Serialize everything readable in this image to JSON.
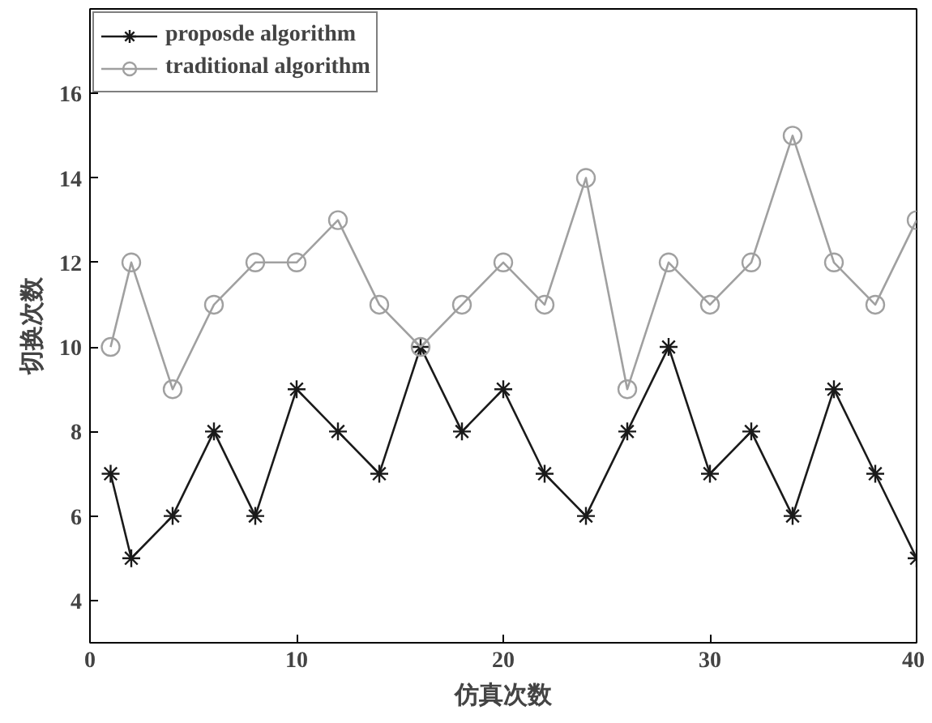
{
  "chart_data": {
    "type": "line",
    "xlabel": "仿真次数",
    "ylabel": "切换次数",
    "x": [
      1,
      2,
      4,
      6,
      8,
      10,
      12,
      14,
      16,
      18,
      20,
      22,
      24,
      26,
      28,
      30,
      32,
      34,
      36,
      38,
      40
    ],
    "series": [
      {
        "name": "proposde algorithm",
        "color": "#1a1a1a",
        "marker": "cross",
        "values": [
          7,
          5,
          6,
          8,
          6,
          9,
          8,
          7,
          10,
          8,
          9,
          7,
          6,
          8,
          10,
          7,
          8,
          6,
          9,
          7,
          5
        ]
      },
      {
        "name": "traditional algorithm",
        "color": "#a0a0a0",
        "marker": "circle",
        "values": [
          10,
          12,
          9,
          11,
          12,
          12,
          13,
          11,
          10,
          11,
          12,
          11,
          14,
          9,
          12,
          11,
          12,
          15,
          12,
          11,
          13
        ]
      }
    ],
    "xlim": [
      0,
      40
    ],
    "ylim": [
      3,
      18
    ],
    "xticks": [
      0,
      10,
      20,
      30,
      40
    ],
    "yticks": [
      4,
      6,
      8,
      10,
      12,
      14,
      16
    ],
    "grid": false,
    "legend": "top left",
    "line_style": "solid"
  }
}
